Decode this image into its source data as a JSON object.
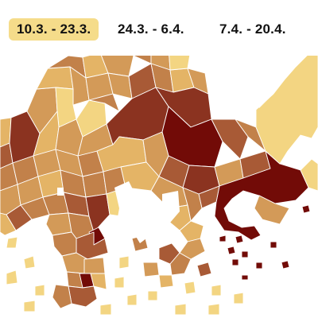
{
  "tabs": [
    {
      "label": "10.3. - 23.3.",
      "active": true
    },
    {
      "label": "24.3. - 6.4.",
      "active": false
    },
    {
      "label": "7.4. - 20.4.",
      "active": false
    }
  ],
  "map": {
    "colors": {
      "water": "#ffffff",
      "border": "#ffffff",
      "very_light": "#f3d582",
      "light": "#e4b466",
      "medium_light": "#d39a58",
      "medium": "#c2814a",
      "medium_dark": "#a85a36",
      "dark": "#8b3320",
      "darkest": "#720b07"
    }
  }
}
